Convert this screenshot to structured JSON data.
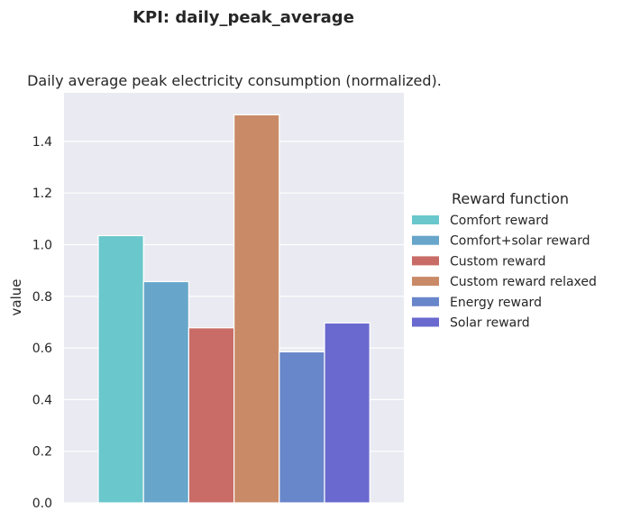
{
  "chart_data": {
    "type": "bar",
    "title": "KPI: daily_peak_average",
    "subtitle": "Daily average peak electricity consumption (normalized).",
    "ylabel": "value",
    "xlabel": "",
    "ylim": [
      0,
      1.55
    ],
    "yticks": [
      "0.0",
      "0.2",
      "0.4",
      "0.6",
      "0.8",
      "1.0",
      "1.2",
      "1.4"
    ],
    "grid": true,
    "legend_title": "Reward function",
    "legend_position": "right",
    "series": [
      {
        "name": "Comfort reward",
        "value": 1.035,
        "color": "#6ac7cc"
      },
      {
        "name": "Comfort+solar reward",
        "value": 0.857,
        "color": "#67a6ca"
      },
      {
        "name": "Custom reward",
        "value": 0.678,
        "color": "#c96b66"
      },
      {
        "name": "Custom reward relaxed",
        "value": 1.503,
        "color": "#c98a67"
      },
      {
        "name": "Energy reward",
        "value": 0.585,
        "color": "#6886ca"
      },
      {
        "name": "Solar reward",
        "value": 0.697,
        "color": "#6a69cf"
      }
    ]
  }
}
